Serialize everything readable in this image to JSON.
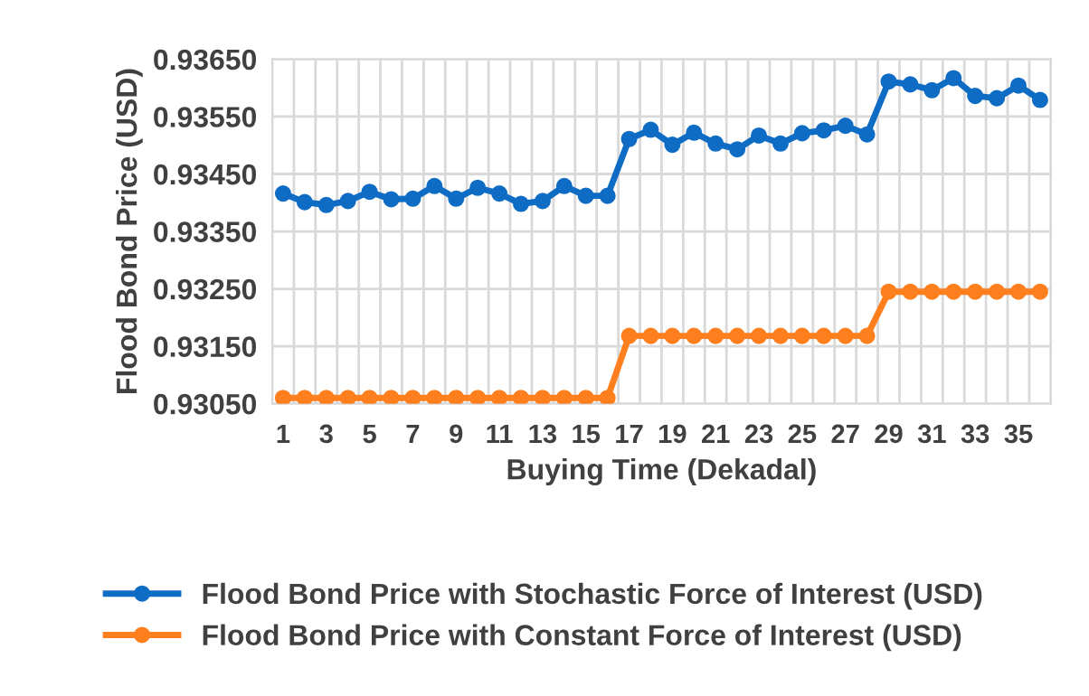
{
  "chart_data": {
    "type": "line",
    "xlabel": "Buying Time (Dekadal)",
    "ylabel": "Flood Bond Price (USD)",
    "categories": [
      "1",
      null,
      "3",
      null,
      "5",
      null,
      "7",
      null,
      "9",
      null,
      "11",
      null,
      "13",
      null,
      "15",
      null,
      "17",
      null,
      "19",
      null,
      "21",
      null,
      "23",
      null,
      "25",
      null,
      "27",
      null,
      "29",
      null,
      "31",
      null,
      "33",
      null,
      "35",
      null
    ],
    "series": [
      {
        "name": "Flood Bond Price with Stochastic Force of Interest (USD)",
        "color": "#0f6cc4",
        "values": [
          0.93416,
          0.93401,
          0.93396,
          0.93403,
          0.93419,
          0.93406,
          0.93407,
          0.93429,
          0.93407,
          0.93426,
          0.93416,
          0.93398,
          0.93403,
          0.93429,
          0.93412,
          0.93412,
          0.93511,
          0.93527,
          0.93501,
          0.93522,
          0.93503,
          0.93493,
          0.93517,
          0.93503,
          0.93521,
          0.93526,
          0.93534,
          0.93519,
          0.93611,
          0.93606,
          0.93596,
          0.93617,
          0.93586,
          0.93582,
          0.93604,
          0.93579
        ]
      },
      {
        "name": "Flood Bond Price with Constant Force of Interest (USD)",
        "color": "#ff7f1e",
        "values": [
          0.9306,
          0.9306,
          0.9306,
          0.9306,
          0.9306,
          0.9306,
          0.9306,
          0.9306,
          0.9306,
          0.9306,
          0.9306,
          0.9306,
          0.9306,
          0.9306,
          0.9306,
          0.9306,
          0.93168,
          0.93168,
          0.93168,
          0.93168,
          0.93168,
          0.93168,
          0.93168,
          0.93168,
          0.93168,
          0.93168,
          0.93168,
          0.93168,
          0.93245,
          0.93245,
          0.93245,
          0.93245,
          0.93245,
          0.93245,
          0.93245,
          0.93245
        ]
      }
    ],
    "ylim": [
      0.9305,
      0.9365
    ],
    "yticks": [
      {
        "value": 0.9305,
        "label": "0.93050"
      },
      {
        "value": 0.9315,
        "label": "0.93150"
      },
      {
        "value": 0.9325,
        "label": "0.93250"
      },
      {
        "value": 0.9335,
        "label": "0.93350"
      },
      {
        "value": 0.9345,
        "label": "0.93450"
      },
      {
        "value": 0.9355,
        "label": "0.93550"
      },
      {
        "value": 0.9365,
        "label": "0.93650"
      }
    ],
    "grid": true,
    "legend": "bottom",
    "marker": "circle",
    "line_style": "solid"
  }
}
